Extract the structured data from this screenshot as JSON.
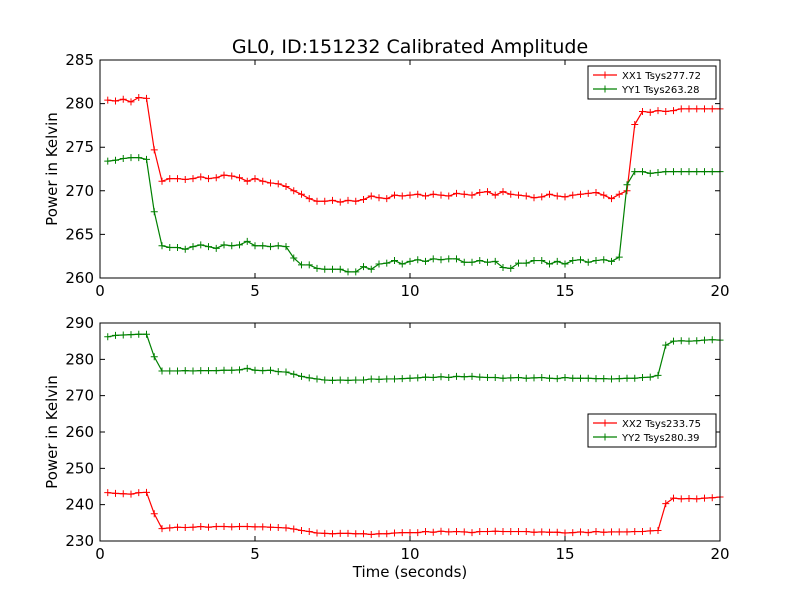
{
  "title": "GL0, ID:151232 Calibrated Amplitude",
  "chart_data": [
    {
      "type": "line",
      "title": "GL0, ID:151232 Calibrated Amplitude",
      "xlabel": "",
      "ylabel": "Power in Kelvin",
      "xlim": [
        0,
        20
      ],
      "ylim": [
        260,
        285
      ],
      "xticks": [
        0,
        5,
        10,
        15,
        20
      ],
      "yticks": [
        260,
        265,
        270,
        275,
        280,
        285
      ],
      "grid": false,
      "legend_position": "top-right",
      "x": [
        0.25,
        0.5,
        0.75,
        1.0,
        1.25,
        1.5,
        1.75,
        2.0,
        2.25,
        2.5,
        2.75,
        3.0,
        3.25,
        3.5,
        3.75,
        4.0,
        4.25,
        4.5,
        4.75,
        5.0,
        5.25,
        5.5,
        5.75,
        6.0,
        6.25,
        6.5,
        6.75,
        7.0,
        7.25,
        7.5,
        7.75,
        8.0,
        8.25,
        8.5,
        8.75,
        9.0,
        9.25,
        9.5,
        9.75,
        10.0,
        10.25,
        10.5,
        10.75,
        11.0,
        11.25,
        11.5,
        11.75,
        12.0,
        12.25,
        12.5,
        12.75,
        13.0,
        13.25,
        13.5,
        13.75,
        14.0,
        14.25,
        14.5,
        14.75,
        15.0,
        15.25,
        15.5,
        15.75,
        16.0,
        16.25,
        16.5,
        16.75,
        17.0,
        17.25,
        17.5,
        17.75,
        18.0,
        18.25,
        18.5,
        18.75,
        19.0,
        19.25,
        19.5,
        19.75,
        20.0
      ],
      "series": [
        {
          "name": "XX1 Tsys277.72",
          "color": "#ff0000",
          "values": [
            280.4,
            280.3,
            280.5,
            280.2,
            280.7,
            280.6,
            274.7,
            271.1,
            271.4,
            271.4,
            271.3,
            271.4,
            271.6,
            271.4,
            271.5,
            271.8,
            271.7,
            271.5,
            271.1,
            271.4,
            271.1,
            270.9,
            270.8,
            270.5,
            270.0,
            269.6,
            269.1,
            268.8,
            268.8,
            268.9,
            268.7,
            268.9,
            268.8,
            269.0,
            269.4,
            269.2,
            269.1,
            269.5,
            269.4,
            269.5,
            269.6,
            269.4,
            269.6,
            269.5,
            269.4,
            269.7,
            269.6,
            269.5,
            269.8,
            269.9,
            269.5,
            269.9,
            269.6,
            269.5,
            269.4,
            269.2,
            269.3,
            269.6,
            269.4,
            269.3,
            269.5,
            269.6,
            269.7,
            269.8,
            269.5,
            269.1,
            269.6,
            270.0,
            277.6,
            279.1,
            279.0,
            279.2,
            279.1,
            279.2,
            279.4,
            279.4,
            279.4,
            279.4,
            279.4,
            279.4
          ]
        },
        {
          "name": "YY1 Tsys263.28",
          "color": "#008000",
          "values": [
            273.4,
            273.5,
            273.7,
            273.8,
            273.8,
            273.6,
            267.6,
            263.7,
            263.5,
            263.5,
            263.3,
            263.6,
            263.8,
            263.6,
            263.4,
            263.8,
            263.7,
            263.8,
            264.2,
            263.7,
            263.7,
            263.6,
            263.7,
            263.6,
            262.3,
            261.5,
            261.5,
            261.1,
            261.0,
            261.0,
            261.0,
            260.7,
            260.7,
            261.3,
            261.0,
            261.6,
            261.7,
            262.0,
            261.6,
            261.9,
            262.1,
            261.9,
            262.2,
            262.1,
            262.2,
            262.2,
            261.8,
            261.8,
            262.0,
            261.8,
            261.9,
            261.2,
            261.1,
            261.7,
            261.7,
            262.0,
            262.0,
            261.6,
            261.9,
            261.6,
            262.0,
            262.1,
            261.8,
            262.0,
            262.1,
            261.9,
            262.4,
            270.7,
            272.2,
            272.2,
            272.0,
            272.1,
            272.2,
            272.2,
            272.2,
            272.2,
            272.2,
            272.2,
            272.2,
            272.2
          ]
        }
      ]
    },
    {
      "type": "line",
      "title": "",
      "xlabel": "Time (seconds)",
      "ylabel": "Power in Kelvin",
      "xlim": [
        0,
        20
      ],
      "ylim": [
        230,
        290
      ],
      "xticks": [
        0,
        5,
        10,
        15,
        20
      ],
      "yticks": [
        230,
        240,
        250,
        260,
        270,
        280,
        290
      ],
      "grid": false,
      "legend_position": "center-right",
      "x": [
        0.25,
        0.5,
        0.75,
        1.0,
        1.25,
        1.5,
        1.75,
        2.0,
        2.25,
        2.5,
        2.75,
        3.0,
        3.25,
        3.5,
        3.75,
        4.0,
        4.25,
        4.5,
        4.75,
        5.0,
        5.25,
        5.5,
        5.75,
        6.0,
        6.25,
        6.5,
        6.75,
        7.0,
        7.25,
        7.5,
        7.75,
        8.0,
        8.25,
        8.5,
        8.75,
        9.0,
        9.25,
        9.5,
        9.75,
        10.0,
        10.25,
        10.5,
        10.75,
        11.0,
        11.25,
        11.5,
        11.75,
        12.0,
        12.25,
        12.5,
        12.75,
        13.0,
        13.25,
        13.5,
        13.75,
        14.0,
        14.25,
        14.5,
        14.75,
        15.0,
        15.25,
        15.5,
        15.75,
        16.0,
        16.25,
        16.5,
        16.75,
        17.0,
        17.25,
        17.5,
        17.75,
        18.0,
        18.25,
        18.5,
        18.75,
        19.0,
        19.25,
        19.5,
        19.75,
        20.0
      ],
      "series": [
        {
          "name": "XX2 Tsys233.75",
          "color": "#ff0000",
          "values": [
            243.3,
            243.1,
            243.0,
            242.9,
            243.3,
            243.4,
            237.5,
            233.4,
            233.6,
            233.8,
            233.7,
            233.8,
            234.0,
            233.8,
            234.0,
            234.0,
            233.9,
            234.0,
            234.0,
            233.9,
            233.9,
            233.8,
            233.7,
            233.6,
            233.3,
            232.9,
            232.6,
            232.2,
            232.1,
            232.0,
            232.1,
            232.1,
            232.0,
            232.0,
            231.8,
            232.0,
            232.0,
            232.2,
            232.3,
            232.3,
            232.3,
            232.6,
            232.4,
            232.7,
            232.5,
            232.6,
            232.5,
            232.3,
            232.6,
            232.6,
            232.7,
            232.6,
            232.6,
            232.6,
            232.6,
            232.4,
            232.5,
            232.4,
            232.4,
            232.2,
            232.3,
            232.5,
            232.3,
            232.6,
            232.4,
            232.5,
            232.5,
            232.5,
            232.6,
            232.6,
            232.8,
            232.9,
            240.3,
            241.8,
            241.6,
            241.7,
            241.6,
            241.8,
            241.9,
            242.1
          ]
        },
        {
          "name": "YY2 Tsys280.39",
          "color": "#008000",
          "values": [
            286.2,
            286.6,
            286.7,
            286.8,
            286.9,
            286.9,
            280.7,
            276.8,
            276.8,
            276.8,
            276.9,
            276.8,
            276.9,
            276.9,
            276.9,
            277.0,
            277.0,
            277.1,
            277.5,
            277.0,
            276.9,
            277.0,
            276.6,
            276.5,
            275.9,
            275.3,
            274.9,
            274.6,
            274.3,
            274.2,
            274.3,
            274.2,
            274.3,
            274.3,
            274.6,
            274.5,
            274.6,
            274.6,
            274.7,
            274.8,
            274.9,
            275.1,
            275.0,
            275.2,
            275.0,
            275.3,
            275.2,
            275.3,
            275.1,
            275.0,
            275.0,
            274.8,
            274.9,
            275.0,
            274.8,
            274.9,
            275.0,
            274.8,
            274.7,
            275.0,
            274.8,
            274.8,
            274.8,
            274.7,
            274.7,
            274.6,
            274.7,
            274.8,
            274.8,
            275.0,
            275.1,
            275.6,
            283.9,
            285.0,
            285.1,
            285.0,
            285.1,
            285.3,
            285.4,
            285.3
          ]
        }
      ]
    }
  ]
}
